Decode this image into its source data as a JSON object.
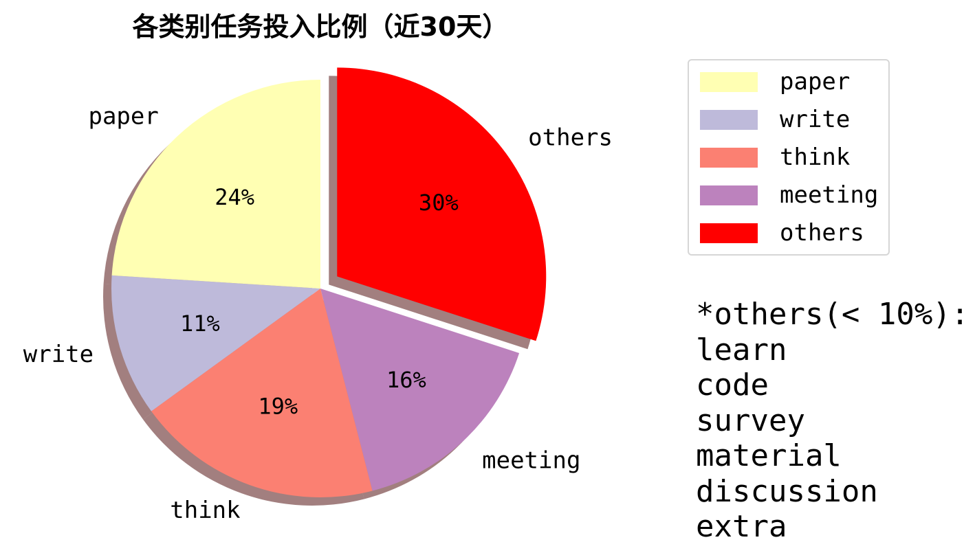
{
  "chart_data": {
    "type": "pie",
    "title": "各类别任务投入比例（近30天）",
    "slices": [
      {
        "label": "others",
        "value": 30,
        "pct_label": "30%",
        "color": "#ff0000",
        "exploded": true
      },
      {
        "label": "meeting",
        "value": 16,
        "pct_label": "16%",
        "color": "#bc82bd",
        "exploded": false
      },
      {
        "label": "think",
        "value": 19,
        "pct_label": "19%",
        "color": "#fb8072",
        "exploded": false
      },
      {
        "label": "write",
        "value": 11,
        "pct_label": "11%",
        "color": "#bebada",
        "exploded": false
      },
      {
        "label": "paper",
        "value": 24,
        "pct_label": "24%",
        "color": "#ffffb3",
        "exploded": false
      }
    ],
    "legend": {
      "placement": "right",
      "entries": [
        {
          "label": "paper",
          "color": "#ffffb3"
        },
        {
          "label": "write",
          "color": "#bebada"
        },
        {
          "label": "think",
          "color": "#fb8072"
        },
        {
          "label": "meeting",
          "color": "#bc82bd"
        },
        {
          "label": "others",
          "color": "#ff0000"
        }
      ]
    },
    "shadow": true,
    "start_angle_deg": 0,
    "direction": "clockwise"
  },
  "note": {
    "lines": [
      "*others(< 10%):",
      "learn",
      "code",
      "survey",
      "material",
      "discussion",
      "extra"
    ]
  }
}
